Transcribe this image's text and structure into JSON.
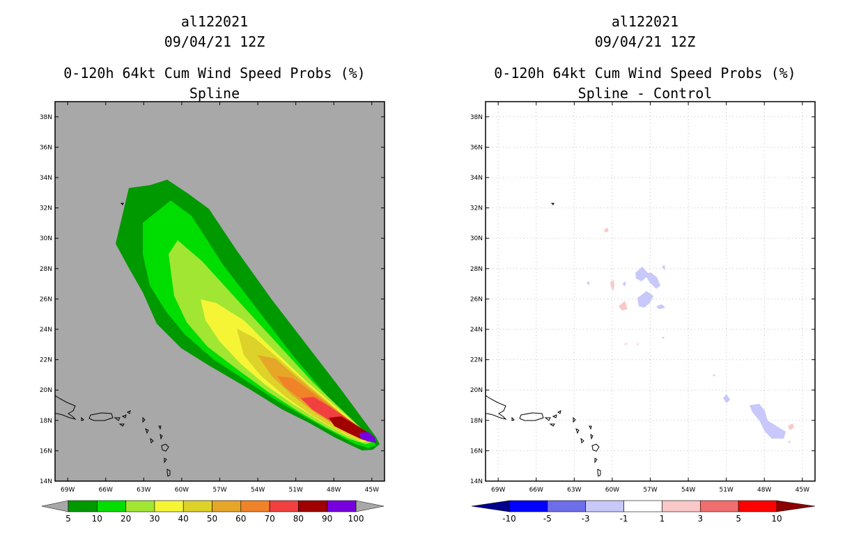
{
  "panels": [
    {
      "storm_id": "al122021",
      "datetime": "09/04/21 12Z",
      "title": "0-120h 64kt Cum Wind Speed Probs (%)",
      "subtitle": "Spline"
    },
    {
      "storm_id": "al122021",
      "datetime": "09/04/21 12Z",
      "title": "0-120h 64kt Cum Wind Speed Probs (%)",
      "subtitle": "Spline - Control"
    }
  ],
  "chart_data": [
    {
      "type": "heatmap",
      "title": "0-120h 64kt Cum Wind Speed Probs (%) Spline",
      "x_ticks": [
        "69W",
        "66W",
        "63W",
        "60W",
        "57W",
        "54W",
        "51W",
        "48W",
        "45W"
      ],
      "y_ticks": [
        "14N",
        "16N",
        "18N",
        "20N",
        "22N",
        "24N",
        "26N",
        "28N",
        "30N",
        "32N",
        "34N",
        "36N",
        "38N"
      ],
      "xlim": [
        -70,
        -44
      ],
      "ylim": [
        14,
        39
      ],
      "background": "#a8a8a8",
      "colorbar": {
        "labels": [
          "5",
          "10",
          "20",
          "30",
          "40",
          "50",
          "60",
          "70",
          "80",
          "90",
          "100"
        ],
        "colors": [
          "#009900",
          "#00dd00",
          "#a0e632",
          "#f5f536",
          "#dcd22a",
          "#e6a628",
          "#f08228",
          "#f04040",
          "#a00000",
          "#7800dc"
        ],
        "end_color": "#a8a8a8"
      }
    },
    {
      "type": "heatmap",
      "title": "0-120h 64kt Cum Wind Speed Probs (%) Spline - Control",
      "x_ticks": [
        "69W",
        "66W",
        "63W",
        "60W",
        "57W",
        "54W",
        "51W",
        "48W",
        "45W"
      ],
      "y_ticks": [
        "14N",
        "16N",
        "18N",
        "20N",
        "22N",
        "24N",
        "26N",
        "28N",
        "30N",
        "32N",
        "34N",
        "36N",
        "38N"
      ],
      "xlim": [
        -70,
        -44
      ],
      "ylim": [
        14,
        39
      ],
      "background": "#ffffff",
      "grid": true,
      "colorbar": {
        "labels": [
          "-10",
          "-5",
          "-3",
          "-1",
          "1",
          "3",
          "5",
          "10"
        ],
        "colors": [
          "#00008c",
          "#0000ff",
          "#6e6eeb",
          "#c8c8fa",
          "#ffffff",
          "#fac8c8",
          "#f06e6e",
          "#ff0000",
          "#8c0000"
        ]
      }
    }
  ],
  "colors": {
    "prob_bands": [
      "#009900",
      "#00dd00",
      "#a0e632",
      "#f5f536",
      "#dcd22a",
      "#e6a628",
      "#f08228",
      "#f04040",
      "#a00000",
      "#7800dc"
    ],
    "diff_positive": "#fac8c8",
    "diff_negative": "#c8c8fa",
    "map_background": "#a8a8a8",
    "coastline": "#000000"
  }
}
